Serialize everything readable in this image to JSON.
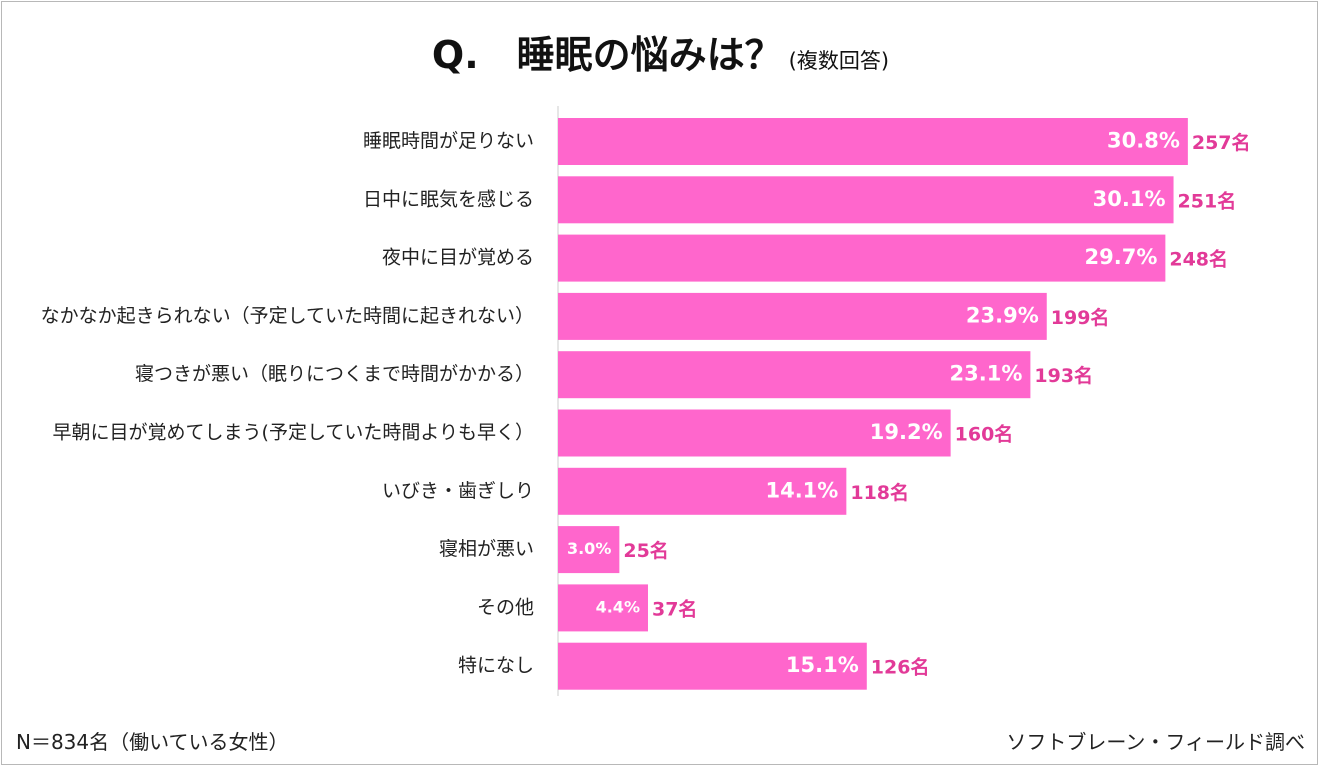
{
  "title": "Q.　睡眠の悩みは？",
  "subtitle": "(複数回答)",
  "footer": {
    "sample": "N＝834名（働いている女性）",
    "source": "ソフトブレーン・フィールド調べ"
  },
  "colors": {
    "bar": "#ff66cc",
    "count_label": "#e23a98",
    "axis": "#cccccc"
  },
  "chart_data": {
    "type": "bar",
    "orientation": "horizontal",
    "categories": [
      "睡眠時間が足りない",
      "日中に眠気を感じる",
      "夜中に目が覚める",
      "なかなか起きられない（予定していた時間に起きれない）",
      "寝つきが悪い（眠りにつくまで時間がかかる）",
      "早朝に目が覚めてしまう(予定していた時間よりも早く）",
      "いびき・歯ぎしり",
      "寝相が悪い",
      "その他",
      "特になし"
    ],
    "values": [
      30.8,
      30.1,
      29.7,
      23.9,
      23.1,
      19.2,
      14.1,
      3.0,
      4.4,
      15.1
    ],
    "value_labels": [
      "30.8%",
      "30.1%",
      "29.7%",
      "23.9%",
      "23.1%",
      "19.2%",
      "14.1%",
      "3.0%",
      "4.4%",
      "15.1%"
    ],
    "counts": [
      257,
      251,
      248,
      199,
      193,
      160,
      118,
      25,
      37,
      126
    ],
    "count_labels": [
      "257名",
      "251名",
      "248名",
      "199名",
      "193名",
      "160名",
      "118名",
      "25名",
      "37名",
      "126名"
    ],
    "unit": "%",
    "grid": false,
    "legend": "none"
  }
}
